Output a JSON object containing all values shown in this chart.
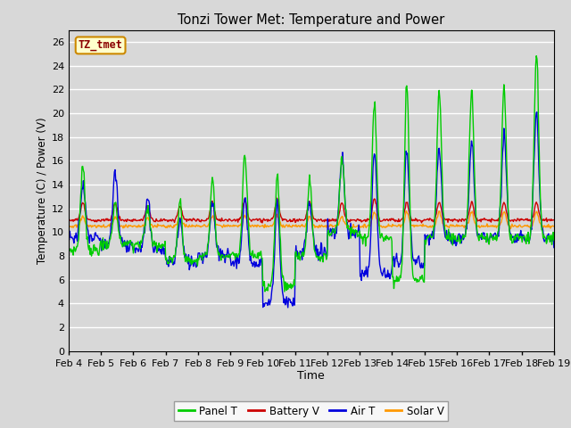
{
  "title": "Tonzi Tower Met: Temperature and Power",
  "xlabel": "Time",
  "ylabel": "Temperature (C) / Power (V)",
  "ylim": [
    0,
    27
  ],
  "yticks": [
    0,
    2,
    4,
    6,
    8,
    10,
    12,
    14,
    16,
    18,
    20,
    22,
    24,
    26
  ],
  "xtick_labels": [
    "Feb 4",
    "Feb 5",
    "Feb 6",
    "Feb 7",
    "Feb 8",
    "Feb 9",
    "Feb 10",
    "Feb 11",
    "Feb 12",
    "Feb 13",
    "Feb 14",
    "Feb 15",
    "Feb 16",
    "Feb 17",
    "Feb 18",
    "Feb 19"
  ],
  "annotation_text": "TZ_tmet",
  "fig_bg_color": "#d8d8d8",
  "plot_bg_color": "#d8d8d8",
  "grid_color": "#ffffff",
  "colors": {
    "panel_t": "#00cc00",
    "battery_v": "#cc0000",
    "air_t": "#0000dd",
    "solar_v": "#ff9900"
  },
  "legend_labels": [
    "Panel T",
    "Battery V",
    "Air T",
    "Solar V"
  ],
  "linewidth": 1.0
}
